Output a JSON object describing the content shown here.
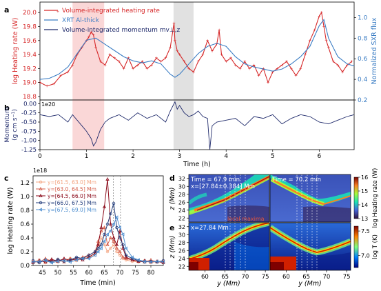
{
  "panel_labels": {
    "a": "a",
    "b": "b",
    "c": "c",
    "d": "d",
    "e": "e"
  },
  "chart_data": [
    {
      "id": "a",
      "type": "line",
      "xlim": [
        0,
        6.75
      ],
      "ylim": [
        18.75,
        20.15
      ],
      "ylim_right": [
        0.2,
        1.15
      ],
      "ylabel": "log Heating rate (W)",
      "ylabel_right": "Normalized SXR flux",
      "yticks": [
        "18.8",
        "19.0",
        "19.2",
        "19.4",
        "19.6",
        "19.8",
        "20.0"
      ],
      "yticks_right": [
        "0.2",
        "0.4",
        "0.6",
        "0.8",
        "1.0"
      ],
      "shaded_regions": [
        {
          "x": [
            0.7,
            1.38
          ],
          "color": "#f4a6a6"
        },
        {
          "x": [
            2.87,
            3.3
          ],
          "color": "#bdbdbd"
        }
      ],
      "legend": {
        "placement": "top-left",
        "entries": [
          "Volume-integrated heating rate",
          "XRT Al-thick",
          "Volume-integrated momentum mv⊥,z"
        ]
      },
      "series": [
        {
          "name": "Volume-integrated heating rate",
          "color": "#d62728",
          "axis": "left",
          "markers": true,
          "x": [
            0,
            0.15,
            0.3,
            0.45,
            0.6,
            0.7,
            0.8,
            0.9,
            1.0,
            1.05,
            1.1,
            1.15,
            1.2,
            1.3,
            1.4,
            1.5,
            1.6,
            1.7,
            1.8,
            1.9,
            2.0,
            2.1,
            2.2,
            2.3,
            2.4,
            2.5,
            2.6,
            2.7,
            2.8,
            2.88,
            2.9,
            2.95,
            3.0,
            3.1,
            3.2,
            3.3,
            3.4,
            3.5,
            3.6,
            3.7,
            3.8,
            3.85,
            3.9,
            4.0,
            4.1,
            4.2,
            4.3,
            4.4,
            4.5,
            4.6,
            4.7,
            4.8,
            4.9,
            5.0,
            5.1,
            5.2,
            5.3,
            5.4,
            5.5,
            5.6,
            5.7,
            5.8,
            5.9,
            6.0,
            6.05,
            6.1,
            6.15,
            6.2,
            6.3,
            6.4,
            6.5,
            6.6,
            6.7
          ],
          "y": [
            19.0,
            18.95,
            18.98,
            19.1,
            19.15,
            19.25,
            19.4,
            19.5,
            19.6,
            19.65,
            19.72,
            19.68,
            19.5,
            19.3,
            19.25,
            19.4,
            19.35,
            19.3,
            19.2,
            19.35,
            19.2,
            19.25,
            19.3,
            19.2,
            19.25,
            19.35,
            19.3,
            19.35,
            19.5,
            19.85,
            19.6,
            19.45,
            19.4,
            19.3,
            19.2,
            19.15,
            19.3,
            19.4,
            19.6,
            19.45,
            19.55,
            19.75,
            19.4,
            19.3,
            19.35,
            19.25,
            19.2,
            19.3,
            19.2,
            19.25,
            19.1,
            19.2,
            19.0,
            19.15,
            19.2,
            19.25,
            19.3,
            19.2,
            19.1,
            19.2,
            19.4,
            19.6,
            19.75,
            19.95,
            20.0,
            19.8,
            19.6,
            19.5,
            19.3,
            19.25,
            19.15,
            19.25,
            19.3
          ]
        },
        {
          "name": "XRT Al-thick",
          "color": "#3b7dc4",
          "axis": "right",
          "x": [
            0,
            0.2,
            0.4,
            0.6,
            0.8,
            1.0,
            1.2,
            1.4,
            1.6,
            1.8,
            2.0,
            2.2,
            2.4,
            2.6,
            2.8,
            2.9,
            3.0,
            3.2,
            3.4,
            3.6,
            3.8,
            4.0,
            4.2,
            4.4,
            4.6,
            4.8,
            5.0,
            5.2,
            5.4,
            5.6,
            5.8,
            6.0,
            6.1,
            6.2,
            6.4,
            6.6,
            6.75
          ],
          "y": [
            0.4,
            0.41,
            0.45,
            0.52,
            0.65,
            0.78,
            0.8,
            0.74,
            0.68,
            0.62,
            0.58,
            0.56,
            0.58,
            0.55,
            0.45,
            0.42,
            0.45,
            0.55,
            0.65,
            0.72,
            0.75,
            0.72,
            0.62,
            0.55,
            0.52,
            0.5,
            0.48,
            0.5,
            0.55,
            0.62,
            0.72,
            0.92,
            0.98,
            0.8,
            0.62,
            0.55,
            0.53
          ]
        }
      ]
    },
    {
      "id": "b",
      "type": "line",
      "xlim": [
        0,
        6.75
      ],
      "ylim": [
        -1.25,
        0.1
      ],
      "xlabel": "Time (h)",
      "ylabel": "Momentum (g cm s⁻¹)",
      "offset_text": "1e20",
      "xticks": [
        "0",
        "1",
        "2",
        "3",
        "4",
        "5",
        "6"
      ],
      "yticks": [
        "0.00",
        "-0.25",
        "-0.50",
        "-0.75",
        "-1.00",
        "-1.25"
      ],
      "shaded_regions": [
        {
          "x": [
            0.7,
            1.38
          ],
          "color": "#f4a6a6"
        },
        {
          "x": [
            2.87,
            3.3
          ],
          "color": "#bdbdbd"
        }
      ],
      "series": [
        {
          "name": "Volume-integrated momentum mv⊥,z",
          "color": "#1f2a6b",
          "x": [
            0,
            0.2,
            0.4,
            0.6,
            0.7,
            0.8,
            0.9,
            1.0,
            1.1,
            1.15,
            1.2,
            1.3,
            1.4,
            1.5,
            1.7,
            1.9,
            2.1,
            2.3,
            2.5,
            2.7,
            2.8,
            2.9,
            2.95,
            3.0,
            3.1,
            3.2,
            3.3,
            3.4,
            3.5,
            3.6,
            3.65,
            3.7,
            3.8,
            4.0,
            4.2,
            4.4,
            4.6,
            4.8,
            5.0,
            5.2,
            5.4,
            5.6,
            5.8,
            6.0,
            6.2,
            6.4,
            6.6,
            6.75
          ],
          "y": [
            -0.3,
            -0.35,
            -0.3,
            -0.5,
            -0.3,
            -0.45,
            -0.6,
            -0.75,
            -0.95,
            -1.15,
            -1.05,
            -0.7,
            -0.5,
            -0.4,
            -0.3,
            -0.45,
            -0.25,
            -0.4,
            -0.3,
            -0.5,
            -0.2,
            0.05,
            -0.15,
            -0.05,
            -0.25,
            -0.35,
            -0.3,
            -0.2,
            -0.35,
            -0.4,
            -1.25,
            -0.6,
            -0.5,
            -0.45,
            -0.4,
            -0.6,
            -0.35,
            -0.4,
            -0.3,
            -0.55,
            -0.4,
            -0.3,
            -0.35,
            -0.5,
            -0.55,
            -0.45,
            -0.35,
            -0.3
          ]
        }
      ]
    },
    {
      "id": "c",
      "type": "line",
      "xlim": [
        42,
        84
      ],
      "ylim": [
        0,
        1.3
      ],
      "xlabel": "Time (min)",
      "ylabel": "log Heating rate (W)",
      "offset_text": "1e18",
      "xticks": [
        "45",
        "50",
        "55",
        "60",
        "65",
        "70",
        "75",
        "80"
      ],
      "yticks": [
        "0.0",
        "0.2",
        "0.4",
        "0.6",
        "0.8",
        "1.0",
        "1.2"
      ],
      "vlines": [
        67.9,
        70.2
      ],
      "legend": {
        "placement": "top-left",
        "entries": [
          "y=[61.5, 63.0] Mm",
          "y=[63.0, 64.5] Mm",
          "y=[64.5, 66.0] Mm",
          "y=[66.0, 67.5] Mm",
          "y=[67.5, 69.0] Mm"
        ]
      },
      "x": [
        42,
        44,
        46,
        48,
        50,
        52,
        54,
        56,
        58,
        60,
        62,
        63,
        64,
        65,
        66,
        67,
        68,
        69,
        70,
        71,
        72,
        74,
        76,
        78,
        80,
        82,
        84
      ],
      "series": [
        {
          "name": "y=[61.5, 63.0] Mm",
          "color": "#f4a582",
          "marker": "o",
          "values": [
            0.05,
            0.08,
            0.04,
            0.07,
            0.05,
            0.08,
            0.1,
            0.07,
            0.1,
            0.12,
            0.15,
            0.25,
            0.4,
            0.3,
            0.2,
            0.25,
            0.3,
            0.2,
            0.15,
            0.1,
            0.08,
            0.06,
            0.05,
            0.07,
            0.04,
            0.06,
            0.05
          ]
        },
        {
          "name": "y=[63.0, 64.5] Mm",
          "color": "#d6604d",
          "marker": "^",
          "values": [
            0.06,
            0.05,
            0.1,
            0.06,
            0.08,
            0.05,
            0.1,
            0.08,
            0.12,
            0.15,
            0.2,
            0.35,
            0.5,
            0.55,
            0.3,
            0.4,
            0.35,
            0.25,
            0.2,
            0.12,
            0.1,
            0.08,
            0.06,
            0.05,
            0.08,
            0.05,
            0.06
          ]
        },
        {
          "name": "y=[64.5, 66.0] Mm",
          "color": "#8b0a1a",
          "marker": "^",
          "values": [
            0.04,
            0.07,
            0.05,
            0.09,
            0.06,
            0.1,
            0.07,
            0.1,
            0.08,
            0.12,
            0.18,
            0.3,
            0.55,
            0.85,
            1.25,
            0.6,
            0.4,
            0.3,
            0.5,
            0.25,
            0.12,
            0.08,
            0.06,
            0.07,
            0.05,
            0.06,
            0.04
          ]
        },
        {
          "name": "y=[66.0, 67.5] Mm",
          "color": "#1f3a7a",
          "marker": "o",
          "values": [
            0.07,
            0.04,
            0.08,
            0.05,
            0.09,
            0.06,
            0.08,
            0.12,
            0.1,
            0.15,
            0.2,
            0.25,
            0.3,
            0.45,
            0.6,
            0.75,
            0.9,
            0.55,
            0.4,
            0.3,
            0.15,
            0.1,
            0.07,
            0.05,
            0.06,
            0.05,
            0.07
          ]
        },
        {
          "name": "y=[67.5, 69.0] Mm",
          "color": "#4f8fd0",
          "marker": "<",
          "values": [
            0.05,
            0.06,
            0.07,
            0.04,
            0.06,
            0.07,
            0.05,
            0.08,
            0.1,
            0.1,
            0.15,
            0.2,
            0.25,
            0.35,
            0.45,
            0.5,
            0.6,
            0.7,
            0.55,
            0.45,
            0.25,
            0.12,
            0.08,
            0.06,
            0.05,
            0.06,
            0.05
          ]
        }
      ]
    },
    {
      "id": "d",
      "type": "heatmap",
      "xlabel": "y (Mm)",
      "ylabel": "z (Mm)",
      "xlim": [
        56,
        76
      ],
      "ylim": [
        21,
        33
      ],
      "xticks": [
        "60",
        "65",
        "70",
        "75"
      ],
      "yticks": [
        "22",
        "24",
        "26",
        "28",
        "30",
        "32"
      ],
      "subpanels": [
        {
          "annotation": "Time = 67.9 min",
          "annotation2": "x=[27.84±0.384] Mm"
        },
        {
          "annotation": "Time = 70.2 min"
        }
      ],
      "note": "local maxima",
      "colorbar": {
        "label": "log Heating rate (W)",
        "range": [
          13,
          16
        ],
        "ticks": [
          "13",
          "14",
          "15",
          "16"
        ]
      }
    },
    {
      "id": "e",
      "type": "heatmap",
      "xlabel": "y (Mm)",
      "ylabel": "z (Mm)",
      "xlim": [
        56,
        76
      ],
      "ylim": [
        21,
        33
      ],
      "xticks": [
        "60",
        "65",
        "70",
        "75"
      ],
      "yticks": [
        "22",
        "24",
        "26",
        "28",
        "30",
        "32"
      ],
      "subpanels": [
        {
          "annotation": "x=27.84 Mm"
        },
        {
          "annotation": ""
        }
      ],
      "colorbar": {
        "label": "log T (K)",
        "range": [
          6.75,
          7.6
        ],
        "ticks": [
          "7.0",
          "7.5"
        ]
      }
    }
  ]
}
